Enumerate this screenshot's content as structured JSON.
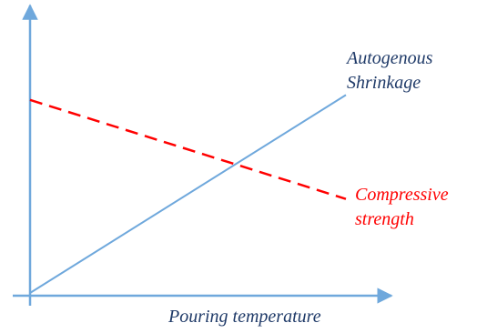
{
  "chart_data": {
    "type": "line",
    "title": "",
    "xlabel": "Pouring temperature",
    "ylabel": "",
    "xlim": [
      0,
      100
    ],
    "ylim": [
      0,
      100
    ],
    "grid": false,
    "series": [
      {
        "name": "Autogenous Shrinkage",
        "name_lines": [
          "Autogenous",
          "Shrinkage"
        ],
        "color": "#6fa8dc",
        "style": "solid",
        "x": [
          0,
          100
        ],
        "y": [
          0,
          80
        ]
      },
      {
        "name": "Compressive strength",
        "name_lines": [
          "Compressive",
          "strength"
        ],
        "color": "#ff0000",
        "style": "dashed",
        "x": [
          0,
          100
        ],
        "y": [
          78,
          38
        ]
      }
    ]
  },
  "colors": {
    "axis": "#6fa8dc",
    "xlabel": "#1f3a68",
    "shrinkage_label": "#1f3a68",
    "strength_label": "#ff0000"
  }
}
